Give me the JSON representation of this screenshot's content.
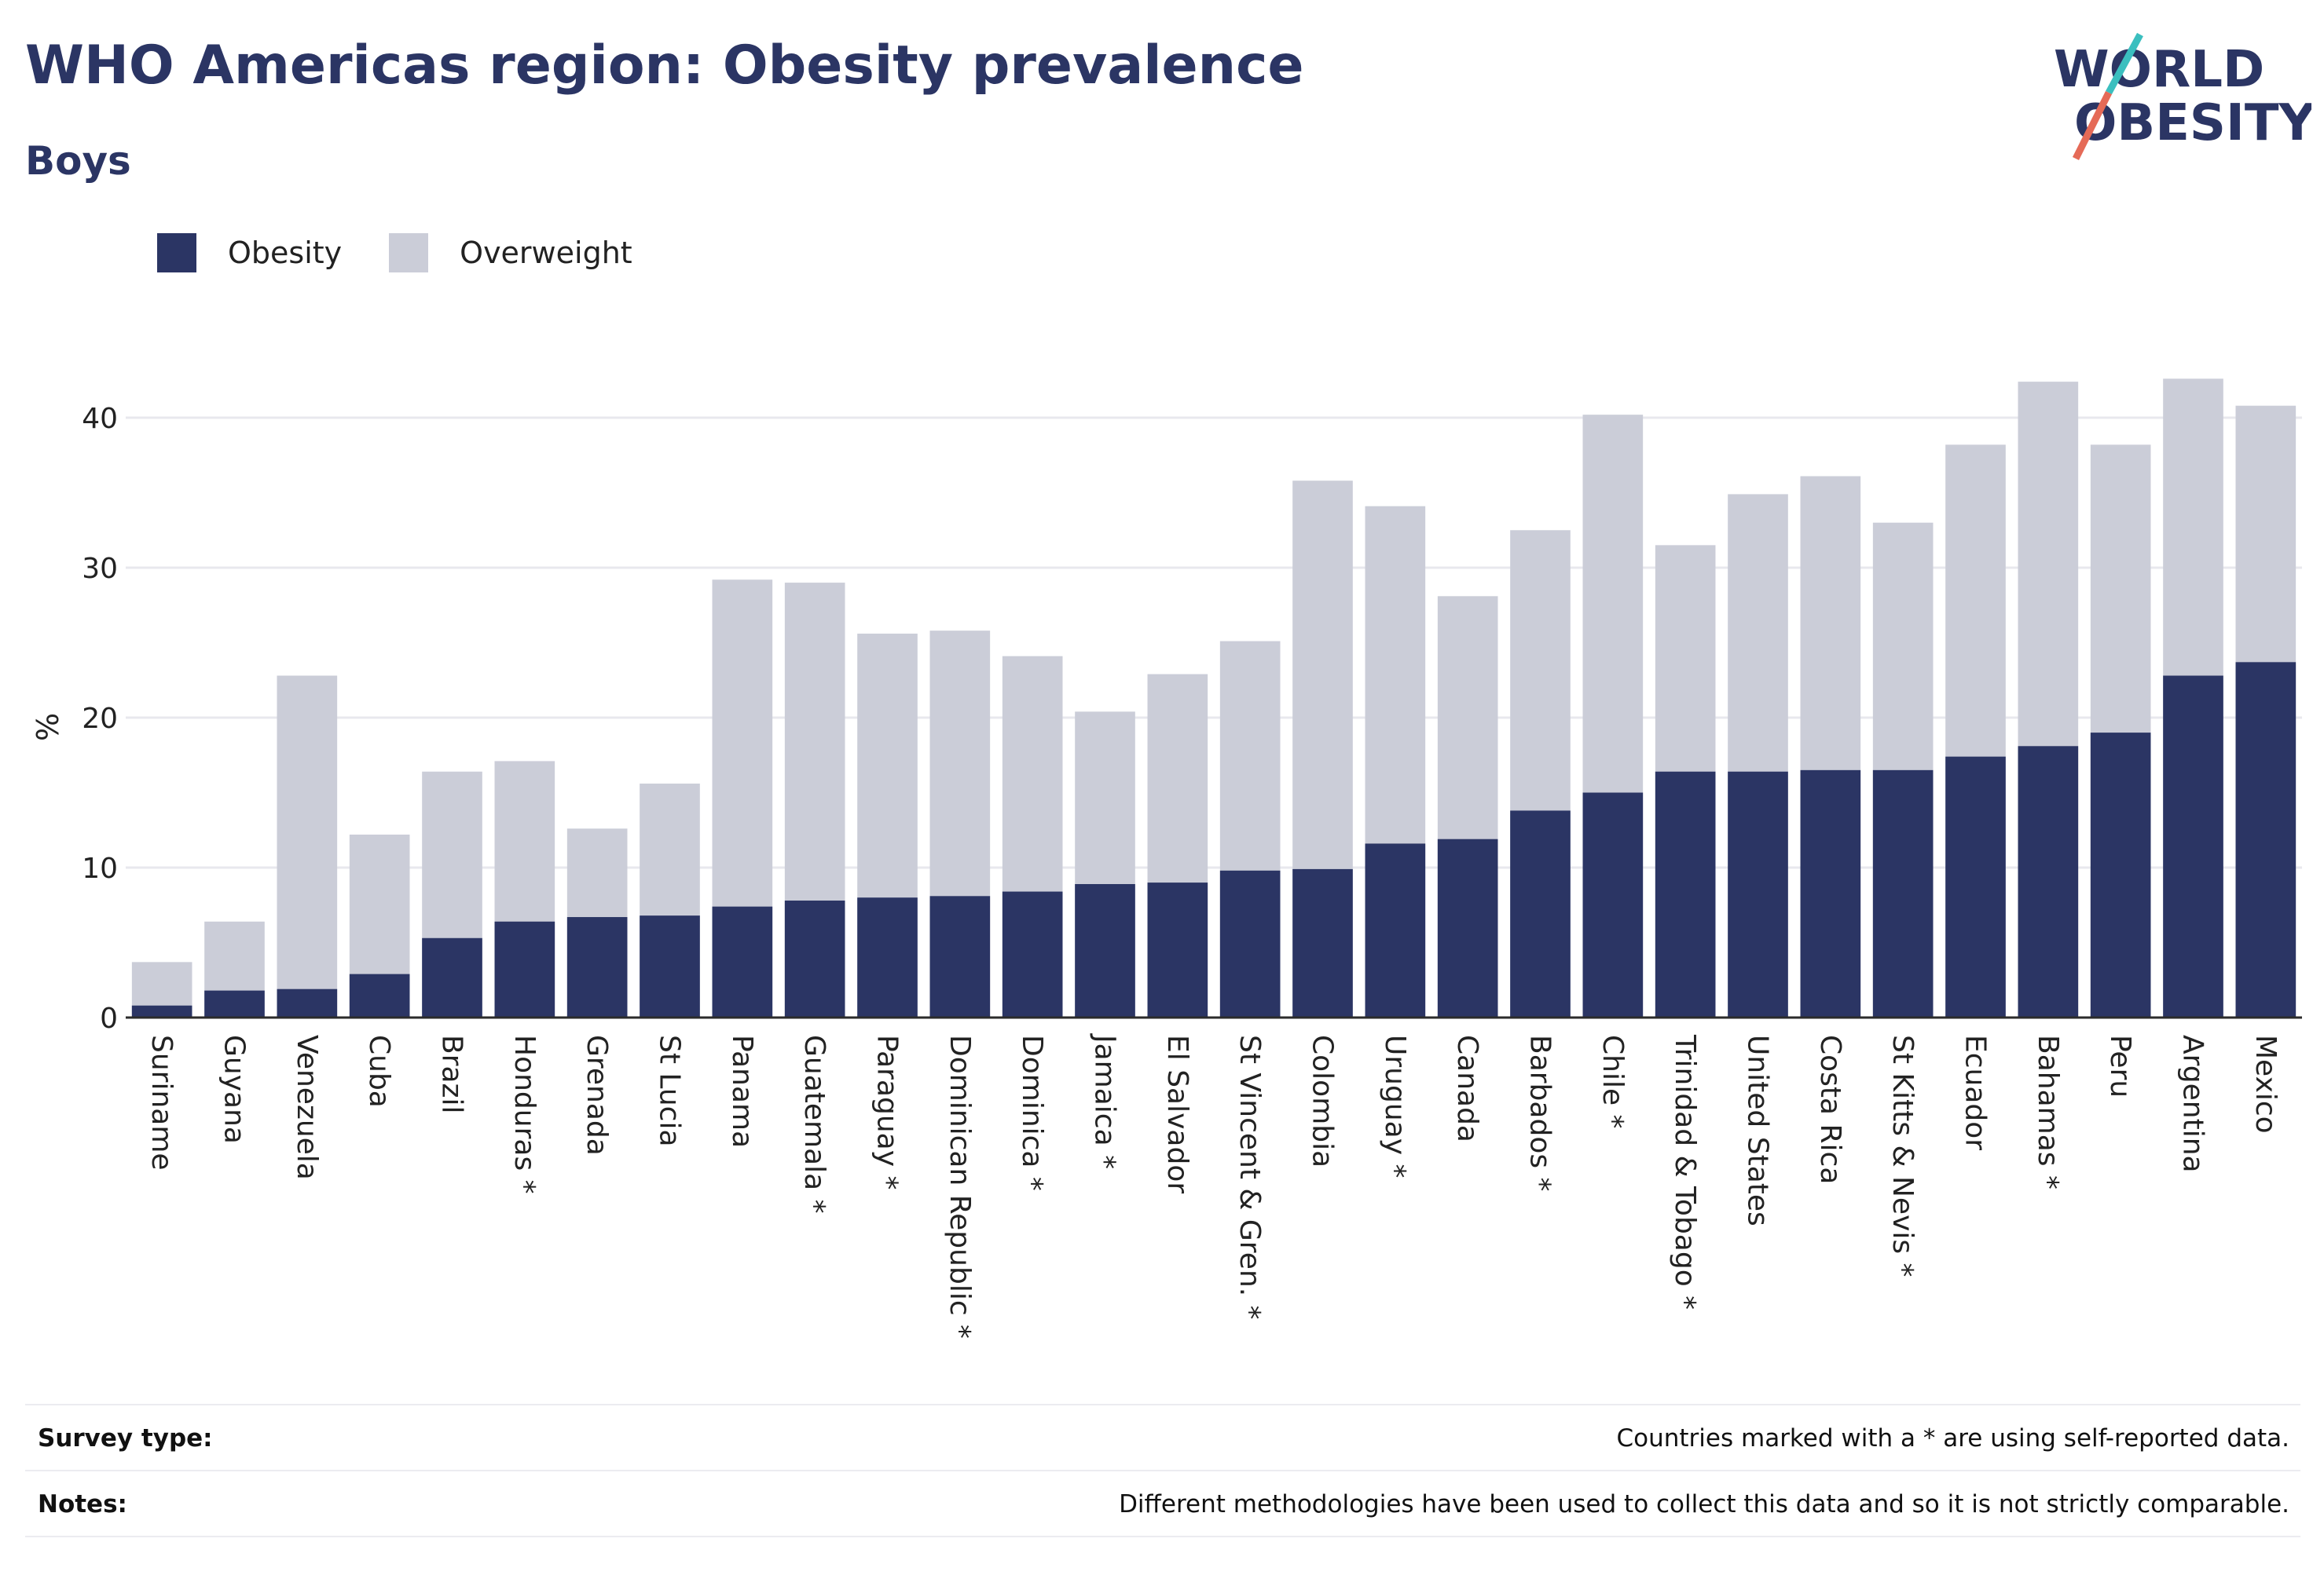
{
  "header": {
    "title": "WHO Americas region: Obesity prevalence",
    "subtitle": "Boys"
  },
  "logo": {
    "line1": "WORLD",
    "line2": "OBESITY"
  },
  "legend": [
    {
      "label": "Obesity",
      "color": "#2b3564"
    },
    {
      "label": "Overweight",
      "color": "#cbcdd8"
    }
  ],
  "chart_data": {
    "type": "bar",
    "stacked": "overlay",
    "ylabel": "%",
    "xlabel": "",
    "ylim": [
      0,
      45
    ],
    "yticks": [
      0,
      10,
      20,
      30,
      40
    ],
    "grid": true,
    "legend_position": "top-left",
    "categories": [
      "Suriname",
      "Guyana",
      "Venezuela",
      "Cuba",
      "Brazil",
      "Honduras *",
      "Grenada",
      "St Lucia",
      "Panama",
      "Guatemala *",
      "Paraguay *",
      "Dominican Republic *",
      "Dominica *",
      "Jamaica *",
      "El Salvador",
      "St Vincent & Gren. *",
      "Colombia",
      "Uruguay *",
      "Canada",
      "Barbados *",
      "Chile *",
      "Trinidad & Tobago *",
      "United States",
      "Costa Rica",
      "St Kitts & Nevis *",
      "Ecuador",
      "Bahamas *",
      "Peru",
      "Argentina",
      "Mexico"
    ],
    "series": [
      {
        "name": "Obesity",
        "color": "#2b3564",
        "values": [
          0.8,
          1.8,
          1.9,
          2.9,
          5.3,
          6.4,
          6.7,
          6.8,
          7.4,
          7.8,
          8.0,
          8.1,
          8.4,
          8.9,
          9.0,
          9.8,
          9.9,
          11.6,
          11.9,
          13.8,
          15.0,
          16.4,
          16.4,
          16.5,
          16.5,
          17.4,
          18.1,
          19.0,
          22.8,
          23.7
        ]
      },
      {
        "name": "Overweight",
        "color": "#cbcdd8",
        "values": [
          3.7,
          6.4,
          22.8,
          12.2,
          16.4,
          17.1,
          12.6,
          15.6,
          29.2,
          29.0,
          25.6,
          25.8,
          24.1,
          20.4,
          22.9,
          25.1,
          35.8,
          34.1,
          28.1,
          32.5,
          40.2,
          31.5,
          34.9,
          36.1,
          33.0,
          38.2,
          42.4,
          38.2,
          42.6,
          40.8
        ]
      }
    ]
  },
  "footer": {
    "survey_label": "Survey type:",
    "survey_text": "Countries marked with a * are using self-reported data.",
    "notes_label": "Notes:",
    "notes_text": "Different methodologies have been used to collect this data and so it is not strictly comparable."
  }
}
